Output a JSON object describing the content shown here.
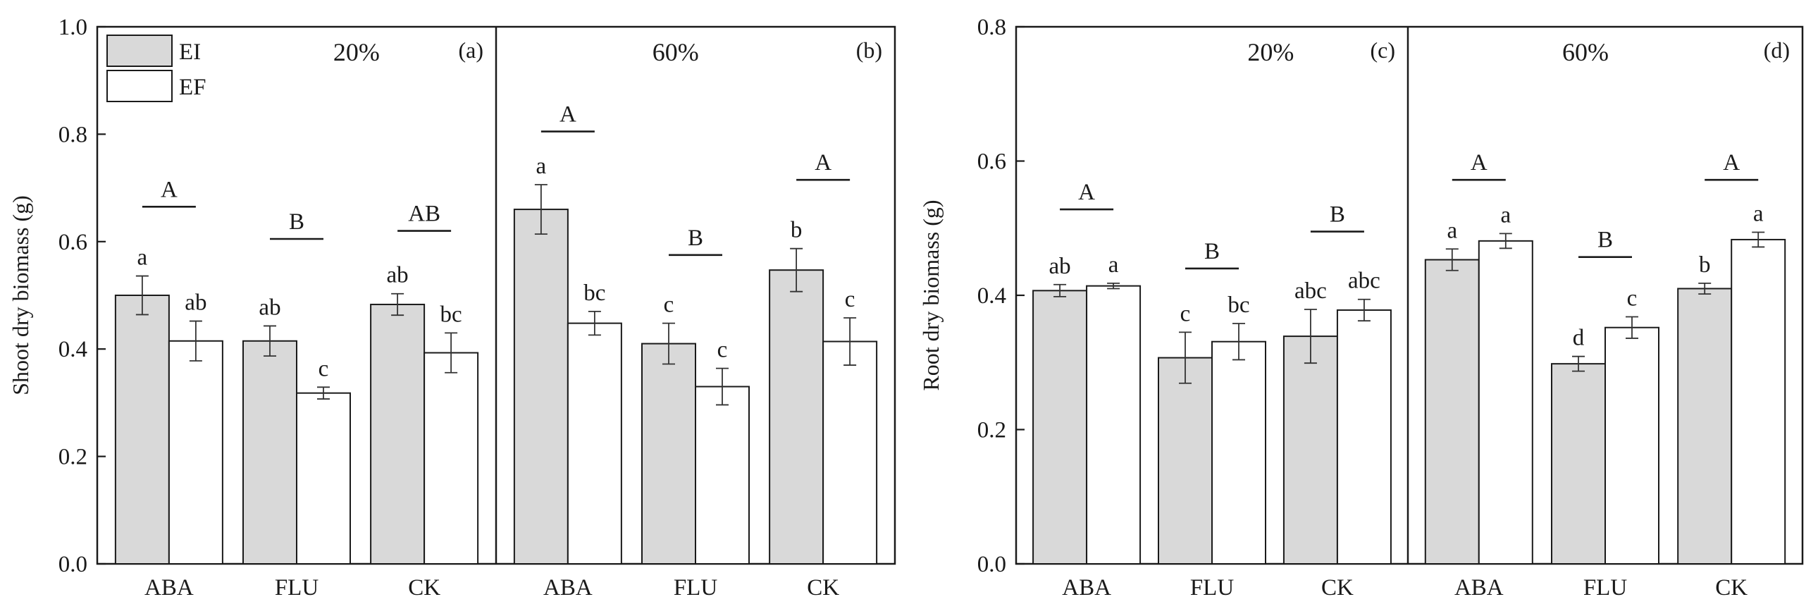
{
  "chart_data": [
    {
      "type": "bar",
      "ylabel": "Shoot dry biomass (g)",
      "ylim": [
        0,
        1.0
      ],
      "yticks": [
        "0.0",
        "0.2",
        "0.4",
        "0.6",
        "0.8",
        "1.0"
      ],
      "legend": {
        "position": "top-left",
        "entries": [
          "EI",
          "EF"
        ]
      },
      "panels": [
        {
          "tag": "(a)",
          "moisture": "20%",
          "categories": [
            "ABA",
            "FLU",
            "CK"
          ],
          "series": [
            {
              "name": "EI",
              "values": [
                0.5,
                0.415,
                0.483
              ],
              "errors": [
                0.036,
                0.028,
                0.02
              ],
              "letters": [
                "a",
                "ab",
                "ab"
              ]
            },
            {
              "name": "EF",
              "values": [
                0.415,
                0.318,
                0.393
              ],
              "errors": [
                0.037,
                0.011,
                0.037
              ],
              "letters": [
                "ab",
                "c",
                "bc"
              ]
            }
          ],
          "group_letters": [
            "A",
            "B",
            "AB"
          ],
          "group_letter_y": [
            0.665,
            0.605,
            0.62
          ]
        },
        {
          "tag": "(b)",
          "moisture": "60%",
          "categories": [
            "ABA",
            "FLU",
            "CK"
          ],
          "series": [
            {
              "name": "EI",
              "values": [
                0.66,
                0.41,
                0.547
              ],
              "errors": [
                0.046,
                0.038,
                0.04
              ],
              "letters": [
                "a",
                "c",
                "b"
              ]
            },
            {
              "name": "EF",
              "values": [
                0.448,
                0.33,
                0.414
              ],
              "errors": [
                0.022,
                0.034,
                0.044
              ],
              "letters": [
                "bc",
                "c",
                "c"
              ]
            }
          ],
          "group_letters": [
            "A",
            "B",
            "A"
          ],
          "group_letter_y": [
            0.805,
            0.575,
            0.715
          ]
        }
      ]
    },
    {
      "type": "bar",
      "ylabel": "Root dry biomass (g)",
      "ylim": [
        0,
        0.8
      ],
      "yticks": [
        "0.0",
        "0.2",
        "0.4",
        "0.6",
        "0.8"
      ],
      "panels": [
        {
          "tag": "(c)",
          "moisture": "20%",
          "categories": [
            "ABA",
            "FLU",
            "CK"
          ],
          "series": [
            {
              "name": "EI",
              "values": [
                0.407,
                0.307,
                0.339
              ],
              "errors": [
                0.009,
                0.038,
                0.04
              ],
              "letters": [
                "ab",
                "c",
                "abc"
              ]
            },
            {
              "name": "EF",
              "values": [
                0.414,
                0.331,
                0.378
              ],
              "errors": [
                0.004,
                0.027,
                0.016
              ],
              "letters": [
                "a",
                "bc",
                "abc"
              ]
            }
          ],
          "group_letters": [
            "A",
            "B",
            "B"
          ],
          "group_letter_y": [
            0.528,
            0.44,
            0.495
          ]
        },
        {
          "tag": "(d)",
          "moisture": "60%",
          "categories": [
            "ABA",
            "FLU",
            "CK"
          ],
          "series": [
            {
              "name": "EI",
              "values": [
                0.453,
                0.298,
                0.41
              ],
              "errors": [
                0.016,
                0.011,
                0.008
              ],
              "letters": [
                "a",
                "d",
                "b"
              ]
            },
            {
              "name": "EF",
              "values": [
                0.481,
                0.352,
                0.483
              ],
              "errors": [
                0.011,
                0.016,
                0.011
              ],
              "letters": [
                "a",
                "c",
                "a"
              ]
            }
          ],
          "group_letters": [
            "A",
            "B",
            "A"
          ],
          "group_letter_y": [
            0.572,
            0.457,
            0.572
          ]
        }
      ]
    }
  ]
}
